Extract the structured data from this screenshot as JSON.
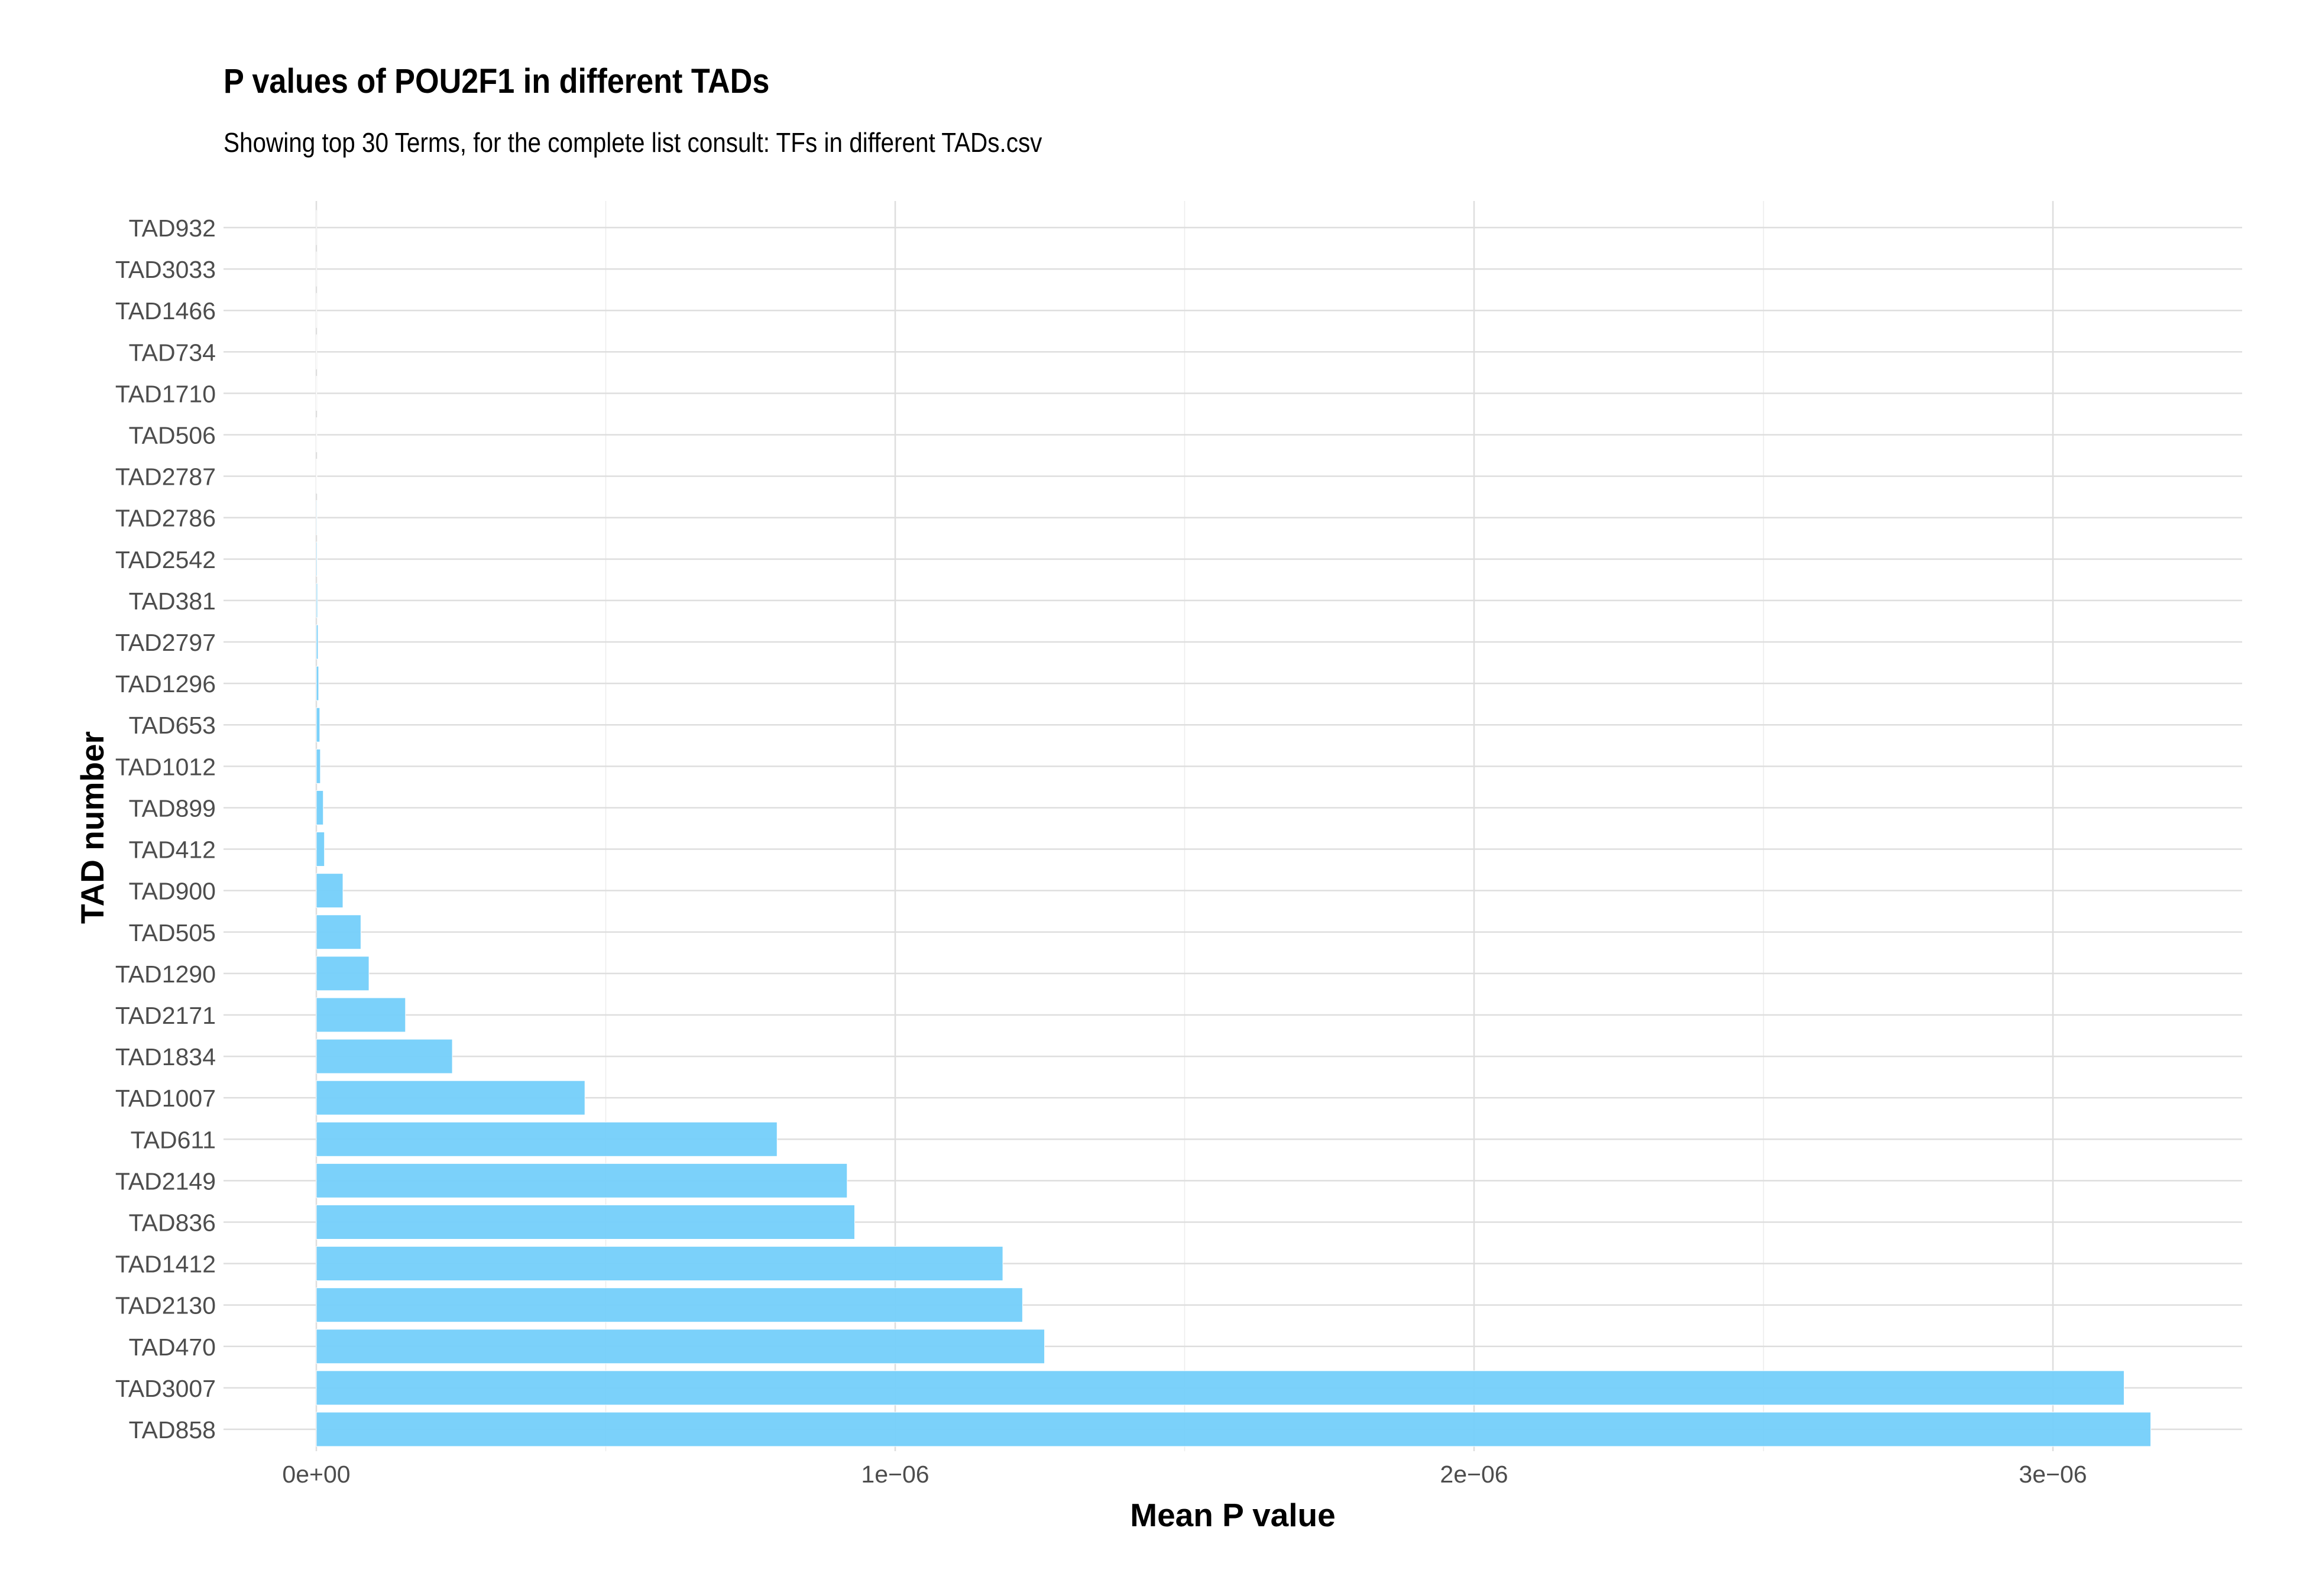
{
  "chart_data": {
    "type": "bar",
    "orientation": "horizontal",
    "title": "P values of POU2F1 in different TADs",
    "subtitle": "Showing top 30 Terms, for the complete list consult: TFs in different TADs.csv",
    "xlabel": "Mean P value",
    "ylabel": "TAD number",
    "xlim": [
      -1.6e-07,
      3.33e-06
    ],
    "x_ticks": [
      0,
      1e-06,
      2e-06,
      3e-06
    ],
    "x_tick_labels": [
      "0e+00",
      "1e−06",
      "2e−06",
      "3e−06"
    ],
    "grid": true,
    "legend": "none",
    "categories": [
      "TAD932",
      "TAD3033",
      "TAD1466",
      "TAD734",
      "TAD1710",
      "TAD506",
      "TAD2787",
      "TAD2786",
      "TAD2542",
      "TAD381",
      "TAD2797",
      "TAD1296",
      "TAD653",
      "TAD1012",
      "TAD899",
      "TAD412",
      "TAD900",
      "TAD505",
      "TAD1290",
      "TAD2171",
      "TAD1834",
      "TAD1007",
      "TAD611",
      "TAD2149",
      "TAD836",
      "TAD1412",
      "TAD2130",
      "TAD470",
      "TAD3007",
      "TAD858"
    ],
    "values": [
      2e-10,
      3e-10,
      4e-10,
      5e-10,
      6e-10,
      8e-10,
      1e-09,
      1.2e-09,
      1.5e-09,
      2e-09,
      3e-09,
      4e-09,
      6e-09,
      7e-09,
      1.2e-08,
      1.4e-08,
      4.6e-08,
      7.7e-08,
      9.1e-08,
      1.54e-07,
      2.35e-07,
      4.64e-07,
      7.96e-07,
      9.17e-07,
      9.3e-07,
      1.186e-06,
      1.22e-06,
      1.258e-06,
      3.123e-06,
      3.169e-06
    ],
    "bar_color": "#74CFFA"
  }
}
